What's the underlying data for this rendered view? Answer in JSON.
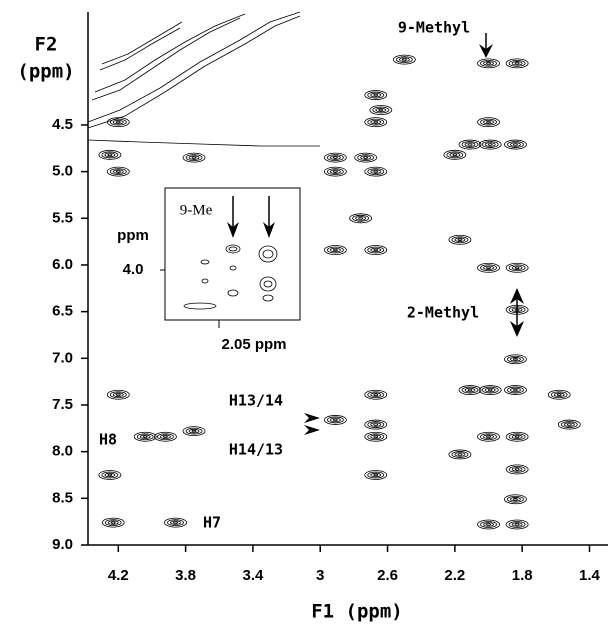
{
  "chart_data": {
    "type": "contour",
    "xlabel": "F1  (ppm)",
    "ylabel": [
      "F2",
      "(ppm)"
    ],
    "xlim": [
      4.38,
      1.29
    ],
    "ylim": [
      9.0,
      3.29
    ],
    "xticks": [
      4.2,
      3.8,
      3.4,
      3.0,
      2.6,
      2.2,
      1.8,
      1.4
    ],
    "yticks": [
      4.5,
      {
        "value": 5,
        "label": "5.0"
      },
      5.5,
      {
        "value": 6,
        "label": "6.0"
      },
      6.5,
      {
        "value": 7,
        "label": "7.0"
      },
      7.5,
      {
        "value": 8,
        "label": "8.0"
      },
      8.5,
      {
        "value": 9,
        "label": "9.0"
      }
    ],
    "x": [
      2.5,
      2.0,
      1.83,
      2.67,
      2.64,
      2.0,
      2.67,
      4.2,
      2.11,
      1.99,
      1.84,
      2.2,
      3.75,
      4.25,
      2.91,
      2.73,
      2.91,
      2.67,
      4.2,
      2.76,
      2.91,
      2.67,
      2.17,
      2.0,
      1.83,
      1.83,
      1.84,
      2.11,
      1.99,
      1.84,
      1.58,
      2.67,
      2.91,
      2.67,
      2.67,
      2.0,
      1.83,
      1.52,
      4.2,
      4.04,
      3.92,
      3.75,
      4.25,
      2.67,
      2.17,
      1.83,
      1.84,
      2.0,
      1.83,
      4.23,
      3.86
    ],
    "values": [
      3.8,
      3.84,
      3.84,
      4.18,
      4.34,
      4.47,
      4.47,
      4.47,
      4.71,
      4.71,
      4.71,
      4.82,
      4.85,
      4.82,
      4.85,
      4.85,
      5.0,
      5.0,
      5.0,
      5.5,
      5.84,
      5.84,
      5.73,
      6.03,
      6.03,
      6.48,
      7.01,
      7.34,
      7.34,
      7.34,
      7.39,
      7.39,
      7.66,
      7.71,
      7.84,
      7.84,
      7.84,
      7.71,
      7.39,
      7.84,
      7.84,
      7.78,
      8.25,
      8.25,
      8.03,
      8.19,
      8.51,
      8.78,
      8.78,
      8.76,
      8.76
    ],
    "annotations": [
      "9-Methyl",
      "2-Methyl",
      "H13/14",
      "H14/13",
      "H8",
      "H7"
    ],
    "inset": {
      "title": "9-Me",
      "ylabel": "ppm",
      "ytick": "4.0",
      "xlabel": "2.05 ppm"
    }
  }
}
